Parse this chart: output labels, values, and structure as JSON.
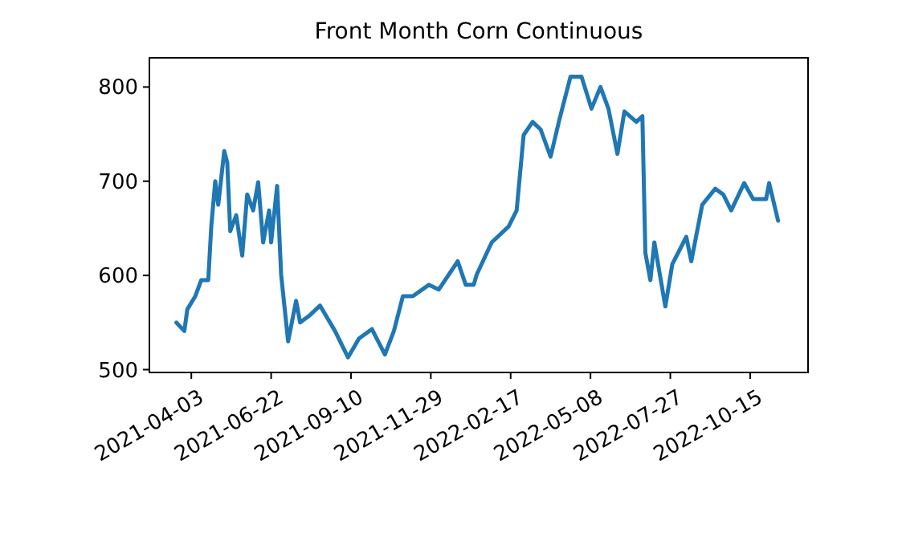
{
  "chart_data": {
    "type": "line",
    "title": "Front Month Corn Continuous",
    "x": [
      "2021-03-19",
      "2021-03-27",
      "2021-03-30",
      "2021-04-07",
      "2021-04-13",
      "2021-04-20",
      "2021-04-23",
      "2021-04-27",
      "2021-04-30",
      "2021-05-06",
      "2021-05-09",
      "2021-05-12",
      "2021-05-18",
      "2021-05-24",
      "2021-05-29",
      "2021-06-04",
      "2021-06-09",
      "2021-06-14",
      "2021-06-20",
      "2021-06-22",
      "2021-06-28",
      "2021-07-02",
      "2021-07-09",
      "2021-07-17",
      "2021-07-21",
      "2021-07-31",
      "2021-08-10",
      "2021-08-25",
      "2021-09-07",
      "2021-09-18",
      "2021-10-01",
      "2021-10-14",
      "2021-10-23",
      "2021-11-01",
      "2021-11-11",
      "2021-11-27",
      "2021-12-07",
      "2021-12-26",
      "2022-01-03",
      "2022-01-11",
      "2022-01-14",
      "2022-01-29",
      "2022-02-15",
      "2022-02-23",
      "2022-03-02",
      "2022-03-11",
      "2022-03-19",
      "2022-03-29",
      "2022-04-07",
      "2022-04-18",
      "2022-04-29",
      "2022-05-09",
      "2022-05-18",
      "2022-05-26",
      "2022-06-04",
      "2022-06-11",
      "2022-06-23",
      "2022-06-29",
      "2022-07-02",
      "2022-07-07",
      "2022-07-11",
      "2022-07-22",
      "2022-07-29",
      "2022-08-12",
      "2022-08-17",
      "2022-08-28",
      "2022-09-10",
      "2022-09-18",
      "2022-09-26",
      "2022-10-09",
      "2022-10-18",
      "2022-10-31",
      "2022-11-03",
      "2022-11-12"
    ],
    "series": [
      {
        "color": "#1f77b4",
        "values": [
          550,
          541,
          564,
          578,
          595,
          595,
          652,
          700,
          675,
          732,
          720,
          647,
          664,
          621,
          686,
          669,
          699,
          635,
          669,
          635,
          695,
          601,
          530,
          573,
          550,
          558,
          568,
          541,
          513,
          533,
          543,
          516,
          541,
          578,
          578,
          590,
          585,
          615,
          590,
          590,
          601,
          635,
          652,
          669,
          749,
          763,
          755,
          726,
          766,
          811,
          811,
          777,
          800,
          777,
          729,
          774,
          763,
          769,
          624,
          595,
          635,
          567,
          612,
          641,
          615,
          675,
          692,
          686,
          669,
          698,
          681,
          681,
          698,
          658
        ]
      }
    ],
    "xlim": [
      "2021-02-20",
      "2022-12-12"
    ],
    "xticks": [
      "2021-04-03",
      "2021-06-22",
      "2021-09-10",
      "2021-11-29",
      "2022-02-17",
      "2022-05-08",
      "2022-07-27",
      "2022-10-15"
    ],
    "ylim": [
      497,
      831
    ],
    "yticks": [
      500,
      600,
      700,
      800
    ],
    "grid": false,
    "line_style": "solid",
    "marker": "none"
  }
}
